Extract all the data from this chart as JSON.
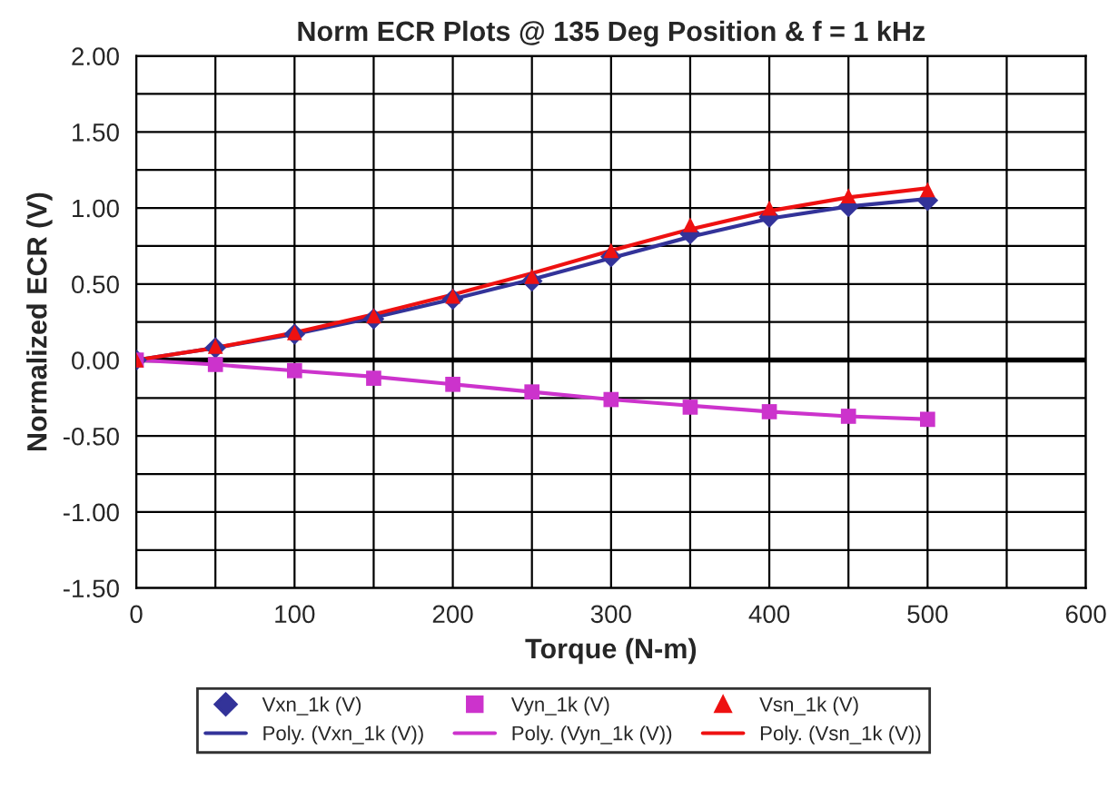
{
  "chart_data": {
    "type": "scatter",
    "title": "Norm ECR Plots @ 135 Deg Position & f = 1 kHz",
    "xlabel": "Torque (N-m)",
    "ylabel": "Normalized ECR (V)",
    "x": [
      0,
      50,
      100,
      150,
      200,
      250,
      300,
      350,
      400,
      450,
      500
    ],
    "series": [
      {
        "name": "Vxn_1k (V)",
        "marker": "diamond",
        "color": "#333399",
        "values": [
          0,
          0.08,
          0.17,
          0.27,
          0.4,
          0.52,
          0.68,
          0.83,
          0.94,
          1.01,
          1.05
        ]
      },
      {
        "name": "Poly. (Vxn_1k (V))",
        "type": "line",
        "marker": "none",
        "color": "#333399",
        "values": [
          0,
          0.08,
          0.17,
          0.28,
          0.4,
          0.53,
          0.67,
          0.81,
          0.93,
          1.01,
          1.06
        ]
      },
      {
        "name": "Vyn_1k (V)",
        "marker": "square",
        "color": "#cc33cc",
        "values": [
          0,
          -0.03,
          -0.07,
          -0.12,
          -0.16,
          -0.21,
          -0.26,
          -0.31,
          -0.34,
          -0.37,
          -0.39
        ]
      },
      {
        "name": "Poly. (Vyn_1k (V))",
        "type": "line",
        "marker": "none",
        "color": "#cc33cc",
        "values": [
          0,
          -0.03,
          -0.07,
          -0.11,
          -0.16,
          -0.21,
          -0.26,
          -0.3,
          -0.34,
          -0.37,
          -0.39
        ]
      },
      {
        "name": "Vsn_1k (V)",
        "marker": "triangle",
        "color": "#ee1111",
        "values": [
          0,
          0.09,
          0.18,
          0.29,
          0.42,
          0.55,
          0.72,
          0.89,
          1.0,
          1.08,
          1.12
        ]
      },
      {
        "name": "Poly. (Vsn_1k (V))",
        "type": "line",
        "marker": "none",
        "color": "#ee1111",
        "values": [
          0,
          0.08,
          0.18,
          0.3,
          0.43,
          0.57,
          0.72,
          0.86,
          0.98,
          1.07,
          1.13
        ]
      }
    ],
    "xlim": [
      0,
      600
    ],
    "xticks": [
      0,
      {
        "value": 50,
        "label": null
      },
      100,
      {
        "value": 150,
        "label": null
      },
      200,
      {
        "value": 250,
        "label": null
      },
      300,
      {
        "value": 350,
        "label": null
      },
      400,
      {
        "value": 450,
        "label": null
      },
      500,
      {
        "value": 550,
        "label": null
      },
      600
    ],
    "ylim": [
      -1.5,
      2.0
    ],
    "yticks": [
      {
        "value": -1.5,
        "label": "-1.50"
      },
      {
        "value": -1.25,
        "label": null
      },
      {
        "value": -1.0,
        "label": "-1.00"
      },
      {
        "value": -0.75,
        "label": null
      },
      {
        "value": -0.5,
        "label": "-0.50"
      },
      {
        "value": -0.25,
        "label": null
      },
      {
        "value": 0,
        "label": "0.00"
      },
      {
        "value": 0.25,
        "label": null
      },
      {
        "value": 0.5,
        "label": "0.50"
      },
      {
        "value": 0.75,
        "label": null
      },
      {
        "value": 1.0,
        "label": "1.00"
      },
      {
        "value": 1.25,
        "label": null
      },
      {
        "value": 1.5,
        "label": "1.50"
      },
      {
        "value": 1.75,
        "label": null
      },
      {
        "value": 2.0,
        "label": "2.00"
      }
    ],
    "ref_lines": [
      {
        "axis": "y",
        "value": 0,
        "color": "#000000"
      }
    ],
    "grid": true,
    "legend": "bottom"
  }
}
